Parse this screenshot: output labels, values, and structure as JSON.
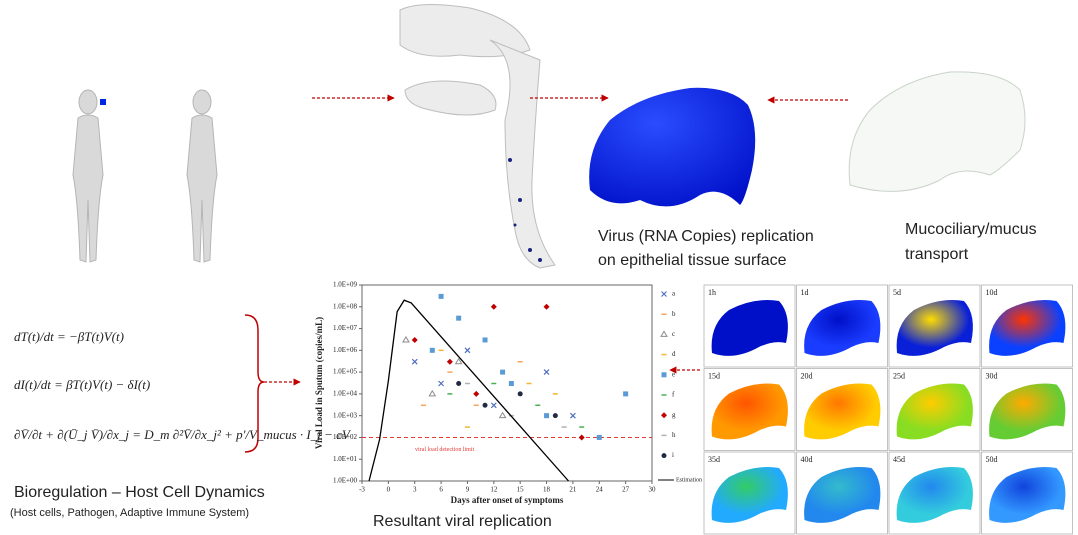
{
  "virus_label": [
    "Virus (RNA Copies) replication",
    "on epithelial tissue surface"
  ],
  "mucus_label": [
    "Mucociliary/mucus",
    "transport"
  ],
  "equations": [
    "dT(t)/dt = −βT(t)V(t)",
    "dI(t)/dt = βT(t)V(t) − δI(t)",
    "∂V̄/∂t + ∂(Ū_j V̄)/∂x_j = D_m ∂²V̄/∂x_j² + p'/V_mucus · I_j − cV"
  ],
  "bioregulation": {
    "title": "Bioregulation – Host Cell Dynamics",
    "subtitle": "(Host cells, Pathogen, Adaptive Immune System)"
  },
  "chart_caption": "Resultant viral replication",
  "chart": {
    "type": "scatter",
    "xlabel": "Days after onset of symptoms",
    "ylabel": "Viral Load in Sputum (copies/mL)",
    "log_y": true,
    "xlim": [
      -3,
      30
    ],
    "xticks": [
      -3,
      0,
      3,
      6,
      9,
      12,
      15,
      18,
      21,
      24,
      27,
      30
    ],
    "ylim": [
      1,
      1000000000
    ],
    "yticks": [
      {
        "value": 1,
        "label": "1.0E+00"
      },
      {
        "value": 10,
        "label": "1.0E+01"
      },
      {
        "value": 100,
        "label": "1.0E+02"
      },
      {
        "value": 1000,
        "label": "1.0E+03"
      },
      {
        "value": 10000,
        "label": "1.0E+04"
      },
      {
        "value": 100000,
        "label": "1.0E+05"
      },
      {
        "value": 1000000,
        "label": "1.0E+06"
      },
      {
        "value": 10000000,
        "label": "1.0E+07"
      },
      {
        "value": 100000000,
        "label": "1.0E+08"
      },
      {
        "value": 1000000000,
        "label": "1.0E+09"
      }
    ],
    "detection_limit": 100,
    "annotation": "viral load detection limit",
    "series": [
      {
        "name": "a",
        "color": "#4e6fbf",
        "marker": "x",
        "x": [
          3,
          6,
          9,
          12,
          18,
          21
        ],
        "values": [
          300000,
          30000,
          1000000,
          3000,
          100000,
          1000
        ]
      },
      {
        "name": "b",
        "color": "#f4a460",
        "marker": "dash",
        "x": [
          4,
          7,
          10,
          15
        ],
        "values": [
          3000,
          100000,
          3000,
          300000
        ]
      },
      {
        "name": "c",
        "color": "#8c8c8c",
        "marker": "triangle",
        "x": [
          2,
          5,
          8,
          13
        ],
        "values": [
          3000000,
          10000,
          300000,
          1000
        ]
      },
      {
        "name": "d",
        "color": "#f2b632",
        "marker": "dash",
        "x": [
          6,
          9,
          16,
          19
        ],
        "values": [
          1000000,
          300,
          30000,
          10000
        ]
      },
      {
        "name": "e",
        "color": "#5b9bd5",
        "marker": "square",
        "x": [
          5,
          6,
          8,
          11,
          13,
          14,
          18,
          24,
          27
        ],
        "values": [
          1000000,
          300000000,
          30000000,
          3000000,
          100000,
          30000,
          1000,
          100,
          10000
        ]
      },
      {
        "name": "f",
        "color": "#4caf50",
        "marker": "dash",
        "x": [
          7,
          12,
          17,
          22
        ],
        "values": [
          10000,
          30000,
          3000,
          300
        ]
      },
      {
        "name": "g",
        "color": "#c00000",
        "marker": "diamond",
        "x": [
          3,
          7,
          10,
          12,
          18,
          22
        ],
        "values": [
          3000000,
          300000,
          10000,
          100000000,
          100000000,
          100
        ]
      },
      {
        "name": "h",
        "color": "#b0b0b0",
        "marker": "dash",
        "x": [
          9,
          14,
          20
        ],
        "values": [
          30000,
          1000,
          300
        ]
      },
      {
        "name": "i",
        "color": "#1f2a44",
        "marker": "circle",
        "x": [
          8,
          11,
          15,
          19
        ],
        "values": [
          30000,
          3000,
          10000,
          1000
        ]
      }
    ],
    "estimation": {
      "name": "Estimation",
      "color": "#000000",
      "x": [
        -2.2,
        -1,
        0,
        1,
        1.8,
        2.6,
        20.5
      ],
      "values": [
        1,
        80,
        40000,
        60000000,
        200000000,
        150000000,
        1
      ]
    }
  },
  "heatmap_labels": [
    "1h",
    "1d",
    "5d",
    "10d",
    "15d",
    "20d",
    "25d",
    "30d",
    "35d",
    "40d",
    "45d",
    "50d"
  ]
}
